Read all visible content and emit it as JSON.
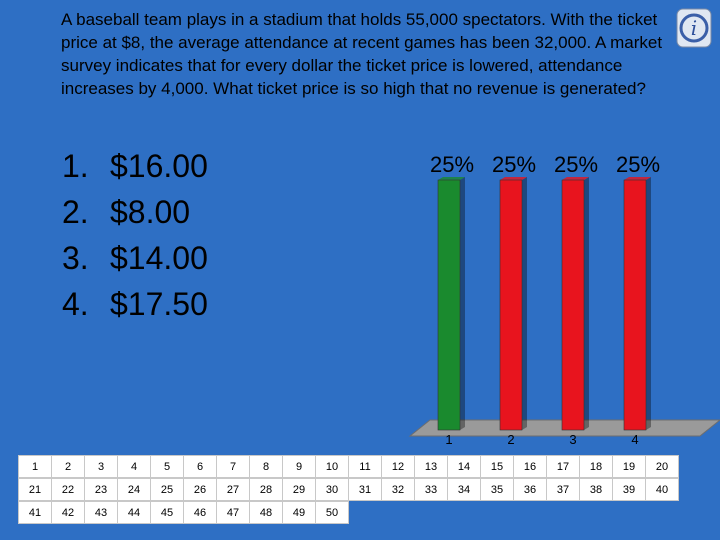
{
  "question": "A baseball team plays in a stadium that holds 55,000 spectators. With the ticket price at $8, the average attendance at recent games has been 32,000. A market survey indicates that for every dollar the ticket price is lowered, attendance increases by 4,000. What ticket price is so high that no revenue is generated?",
  "logo": {
    "glyph": "i"
  },
  "answers": [
    {
      "number": "1.",
      "text": "$16.00"
    },
    {
      "number": "2.",
      "text": "$8.00"
    },
    {
      "number": "3.",
      "text": "$14.00"
    },
    {
      "number": "4.",
      "text": "$17.50"
    }
  ],
  "colors": {
    "background": "#2e6fc4",
    "bar_correct": "#1a8a2e",
    "bar_other": "#e8141e",
    "chart_floor": "#9a9a9a"
  },
  "chart_data": {
    "type": "bar",
    "categories": [
      "1",
      "2",
      "3",
      "4"
    ],
    "values": [
      25,
      25,
      25,
      25
    ],
    "value_labels": [
      "25%",
      "25%",
      "25%",
      "25%"
    ],
    "ylim": [
      0,
      25
    ],
    "bar_colors": [
      "#1a8a2e",
      "#e8141e",
      "#e8141e",
      "#e8141e"
    ],
    "grid": false
  },
  "keypads": [
    "1",
    "2",
    "3",
    "4",
    "5",
    "6",
    "7",
    "8",
    "9",
    "10",
    "11",
    "12",
    "13",
    "14",
    "15",
    "16",
    "17",
    "18",
    "19",
    "20",
    "21",
    "22",
    "23",
    "24",
    "25",
    "26",
    "27",
    "28",
    "29",
    "30",
    "31",
    "32",
    "33",
    "34",
    "35",
    "36",
    "37",
    "38",
    "39",
    "40",
    "41",
    "42",
    "43",
    "44",
    "45",
    "46",
    "47",
    "48",
    "49",
    "50"
  ]
}
